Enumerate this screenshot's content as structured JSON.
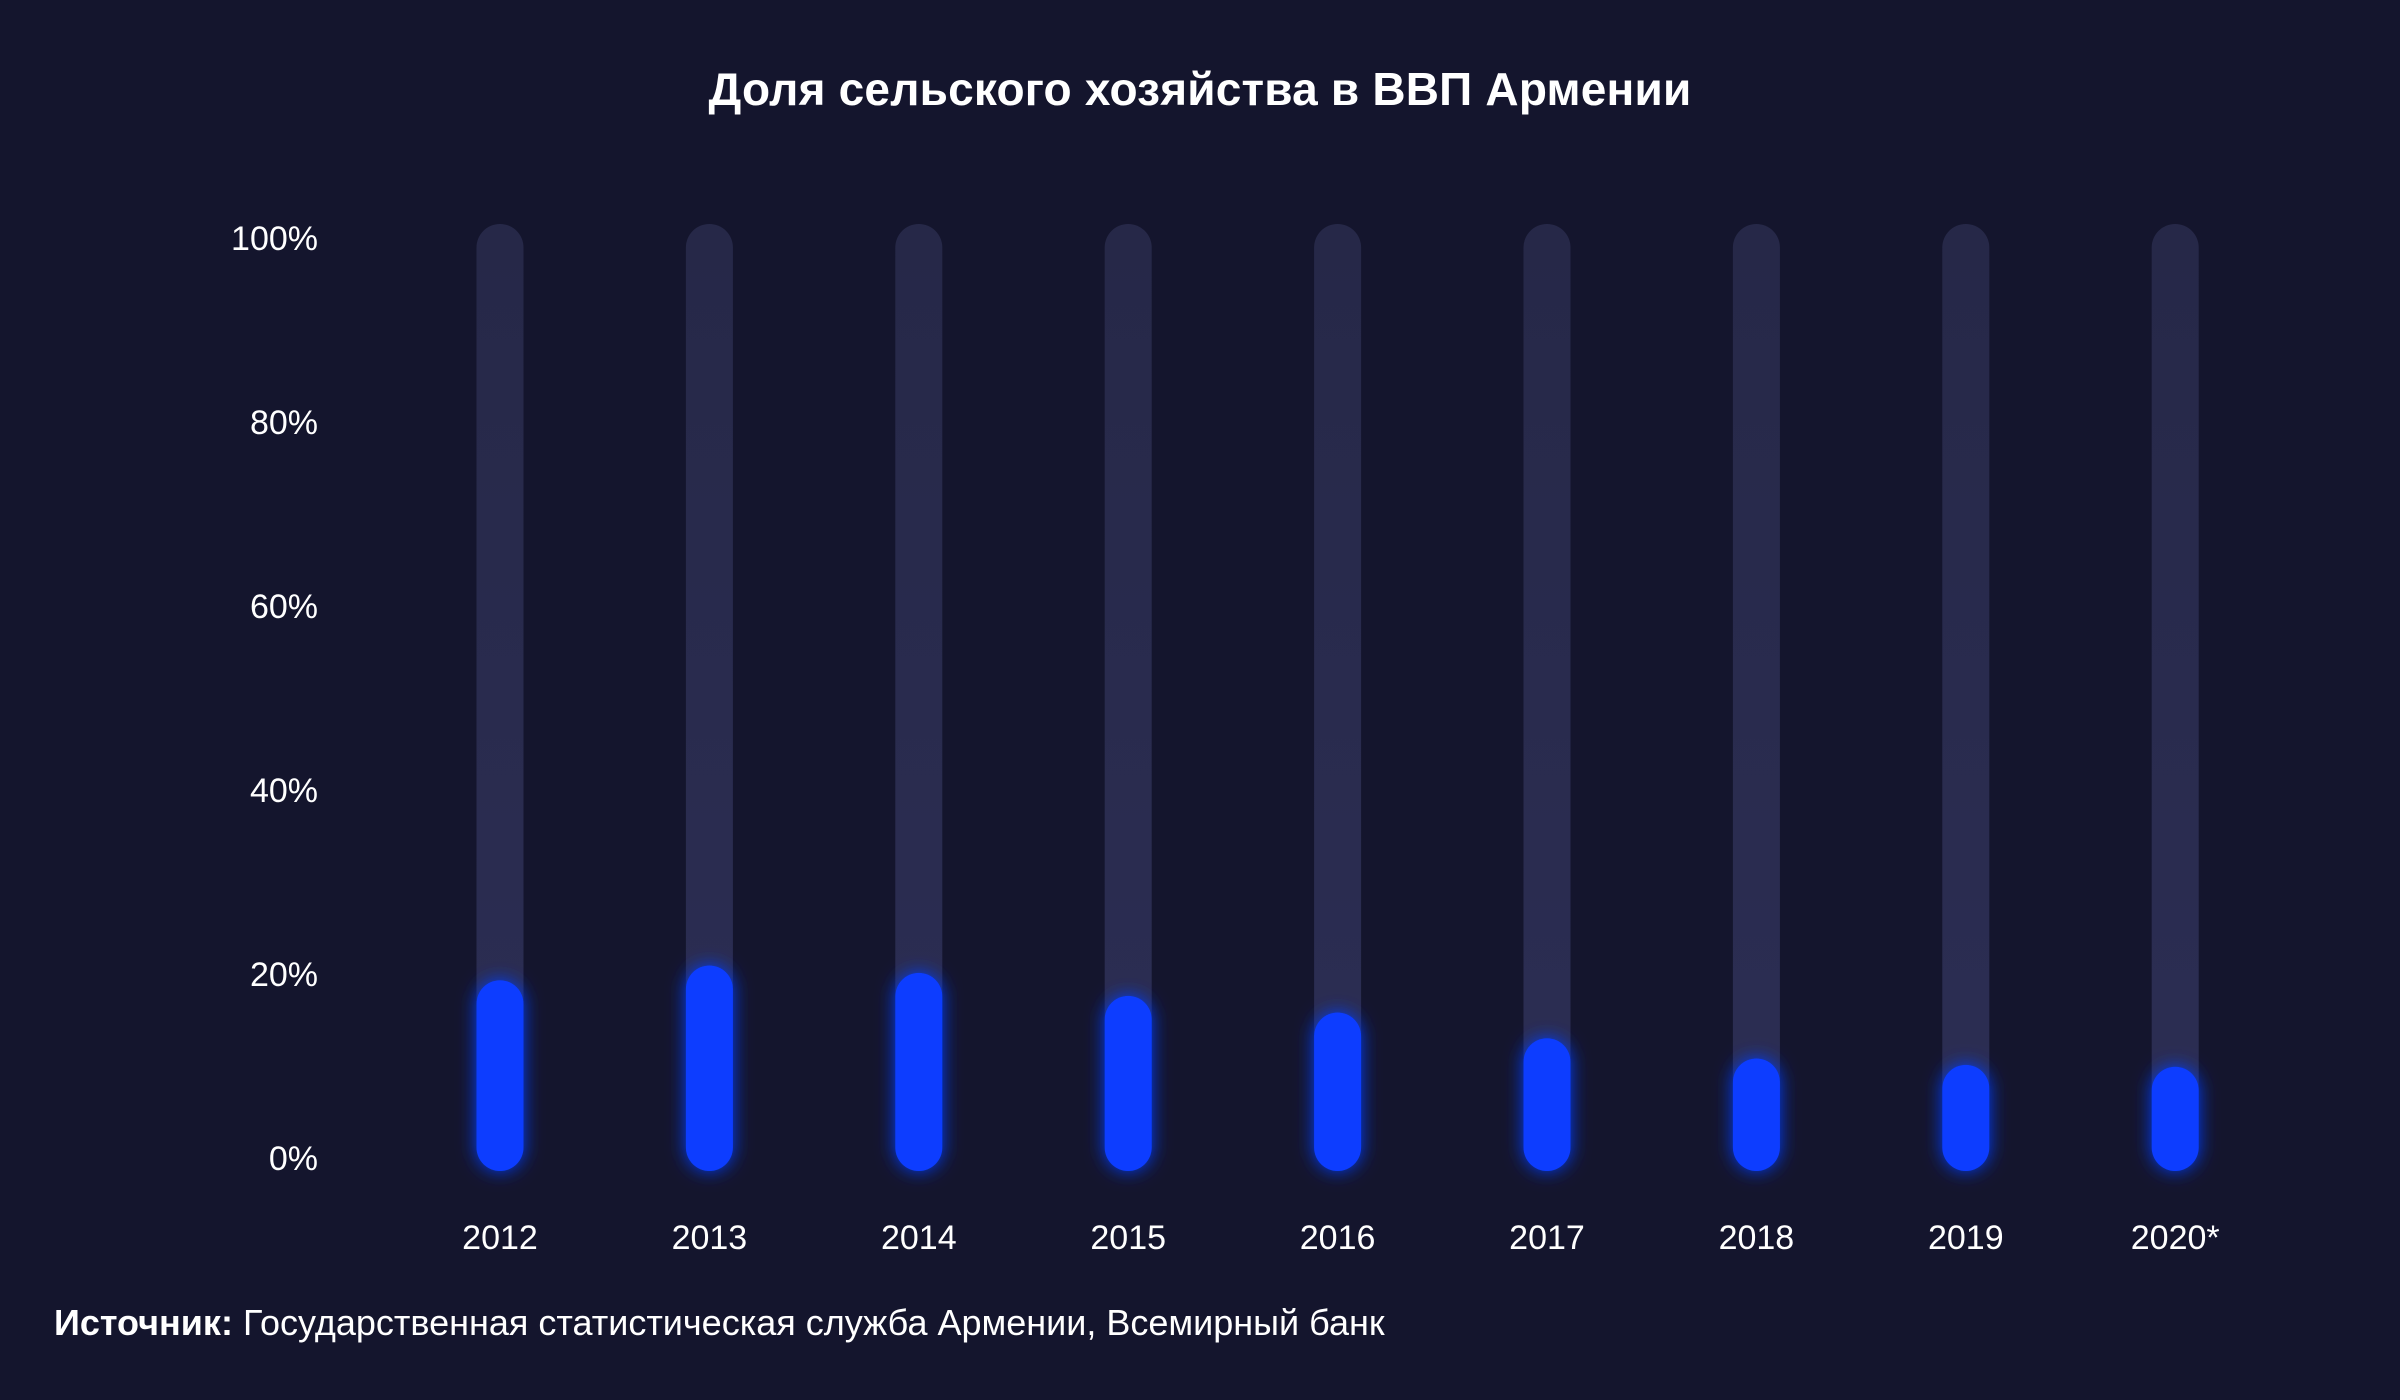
{
  "chart_data": {
    "type": "bar",
    "title": "Доля сельского хозяйства в ВВП Армении",
    "categories": [
      "2012",
      "2013",
      "2014",
      "2015",
      "2016",
      "2017",
      "2018",
      "2019",
      "2020*"
    ],
    "values": [
      17.8,
      19.4,
      18.6,
      16.1,
      14.3,
      11.5,
      9.3,
      8.6,
      8.4
    ],
    "ylim": [
      0,
      100
    ],
    "yticks": [
      "0%",
      "20%",
      "40%",
      "60%",
      "80%",
      "100%"
    ],
    "xlabel": "",
    "ylabel": "",
    "grid": false,
    "colors": {
      "bar": "#0a3cff",
      "track": "#24264a",
      "background": "#14152d",
      "text": "#ffffff"
    }
  },
  "source": {
    "label": "Источник:",
    "text": " Государственная статистическая служба Армении, Всемирный банк"
  }
}
